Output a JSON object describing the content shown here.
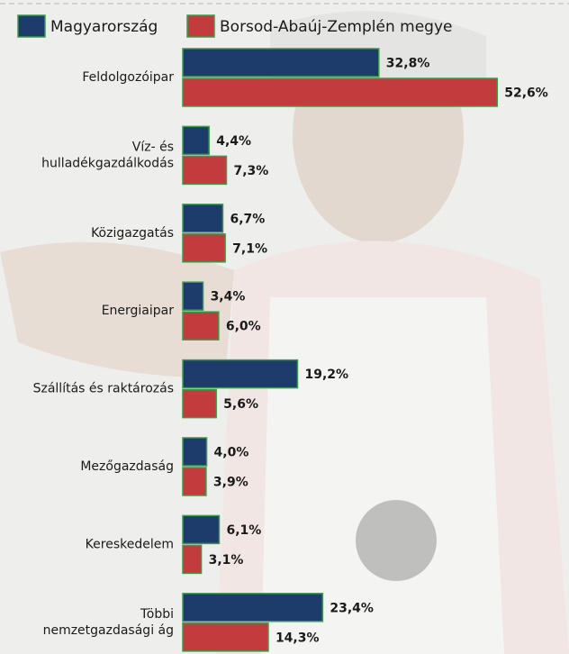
{
  "chart_data": {
    "type": "bar",
    "orientation": "horizontal",
    "categories": [
      "Feldolgozóipar",
      "Víz- és\nhulladékgazdálkodás",
      "Közigazgatás",
      "Energiaipar",
      "Szállítás és raktározás",
      "Mezőgazdaság",
      "Kereskedelem",
      "Többi\nnemzetgazdasági ág"
    ],
    "series": [
      {
        "name": "Magyarország",
        "color": "#1d3c6b",
        "values": [
          32.8,
          4.4,
          6.7,
          3.4,
          19.2,
          4.0,
          6.1,
          23.4
        ],
        "value_labels": [
          "32,8%",
          "4,4%",
          "6,7%",
          "3,4%",
          "19,2%",
          "4,0%",
          "6,1%",
          "23,4%"
        ]
      },
      {
        "name": "Borsod-Abaúj-Zemplén megye",
        "color": "#c23b3d",
        "values": [
          52.6,
          7.3,
          7.1,
          6.0,
          5.6,
          3.9,
          3.1,
          14.3
        ],
        "value_labels": [
          "52,6%",
          "7,3%",
          "7,1%",
          "6,0%",
          "5,6%",
          "3,9%",
          "3,1%",
          "14,3%"
        ]
      }
    ],
    "bar_border_color": "#3c9a4c"
  }
}
